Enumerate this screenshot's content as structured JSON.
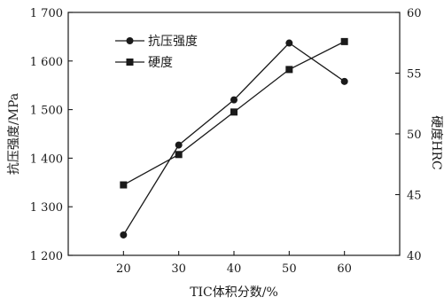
{
  "chart_data": {
    "type": "line",
    "x": [
      20,
      30,
      40,
      50,
      60
    ],
    "xlabel": "TIC体积分数/%",
    "ylabel_left": "抗压强度/MPa",
    "ylabel_right": "硬度HRC",
    "xlim": [
      10,
      70
    ],
    "ylim_left": [
      1200,
      1700
    ],
    "ylim_right": [
      40,
      60
    ],
    "x_ticks": [
      "20",
      "30",
      "40",
      "50",
      "60"
    ],
    "y_ticks_left": [
      "1 200",
      "1 300",
      "1 400",
      "1 500",
      "1 600",
      "1 700"
    ],
    "y_ticks_right": [
      "40",
      "45",
      "50",
      "55",
      "60"
    ],
    "legend_position": "top-left",
    "grid": false,
    "series": [
      {
        "name": "抗压强度",
        "axis": "left",
        "marker": "circle",
        "values": [
          1242,
          1427,
          1520,
          1637,
          1558
        ]
      },
      {
        "name": "硬度",
        "axis": "right",
        "marker": "square",
        "values": [
          45.8,
          48.3,
          51.8,
          55.3,
          57.6
        ]
      }
    ],
    "colors": {
      "line": "#1a1a1a",
      "marker": "#1a1a1a",
      "axis": "#1a1a1a"
    }
  }
}
